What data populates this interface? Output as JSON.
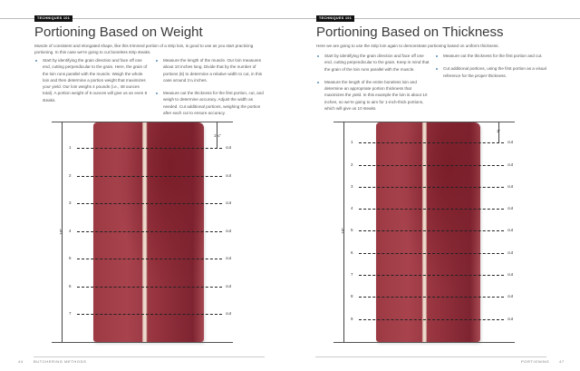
{
  "left": {
    "badge": "TECHNIQUES 101",
    "title": "Portioning Based on Weight",
    "intro": "Muscle of consistent and elongated shape, like this trimmed portion of a strip loin, is good to use as you start practicing portioning. In this case we're going to cut boneless strip steaks.",
    "bullets_col1": [
      "Start by identifying the grain direction and face off one end, cutting perpendicular to the grain. Here, the grain of the loin runs parallel with the muscle. Weigh the whole loin and then determine a portion weight that maximizes your yield. Our loin weighs 4 pounds (i.e., 48 ounces total). A portion weight of 6 ounces will give us an even 8 steaks."
    ],
    "bullets_col2": [
      "Measure the length of the muscle. Our loin measures about 10 inches long. Divide that by the number of portions (8) to determine a relative width to cut, in this case around 1¼ inches.",
      "Measure out the thickness for the first portion, cut, and weigh to determine accuracy. Adjust the width as needed. Cut additional portions, weighing the portion after each cut to ensure accuracy."
    ],
    "diagram": {
      "length_label": "10\"",
      "portion_label": "1¼\"",
      "numbers": [
        "1",
        "2",
        "3",
        "4",
        "5",
        "6",
        "7"
      ],
      "cut_label": "cut"
    },
    "footer": {
      "page": "44",
      "section": "BUTCHERING METHODS"
    }
  },
  "right": {
    "badge": "TECHNIQUES 101",
    "title": "Portioning Based on Thickness",
    "intro": "Here we are going to use the strip loin again to demonstrate portioning based on uniform thickness.",
    "bullets_col1": [
      "Start by identifying the grain direction and face off one end, cutting perpendicular to the grain. Keep in mind that the grain of the loin runs parallel with the muscle.",
      "Measure the length of the entire boneless loin and determine an appropriate portion thickness that maximizes the yield. In this example the loin is about 10 inches, so we're going to aim for 1-inch-thick portions, which will give us 10 steaks."
    ],
    "bullets_col2": [
      "Measure out the thickness for the first portion and cut.",
      "Cut additional portions, using the first portion as a visual reference for the proper thickness."
    ],
    "diagram": {
      "length_label": "10\"",
      "portion_label": "1\"",
      "numbers": [
        "1",
        "2",
        "3",
        "4",
        "5",
        "6",
        "7",
        "8",
        "9"
      ],
      "cut_label": "cut"
    },
    "footer": {
      "page": "47",
      "section": "PORTIONING"
    }
  },
  "colors": {
    "badge": "#111111",
    "bullet": "#7fa8c8",
    "meat": "#9c3a44"
  }
}
